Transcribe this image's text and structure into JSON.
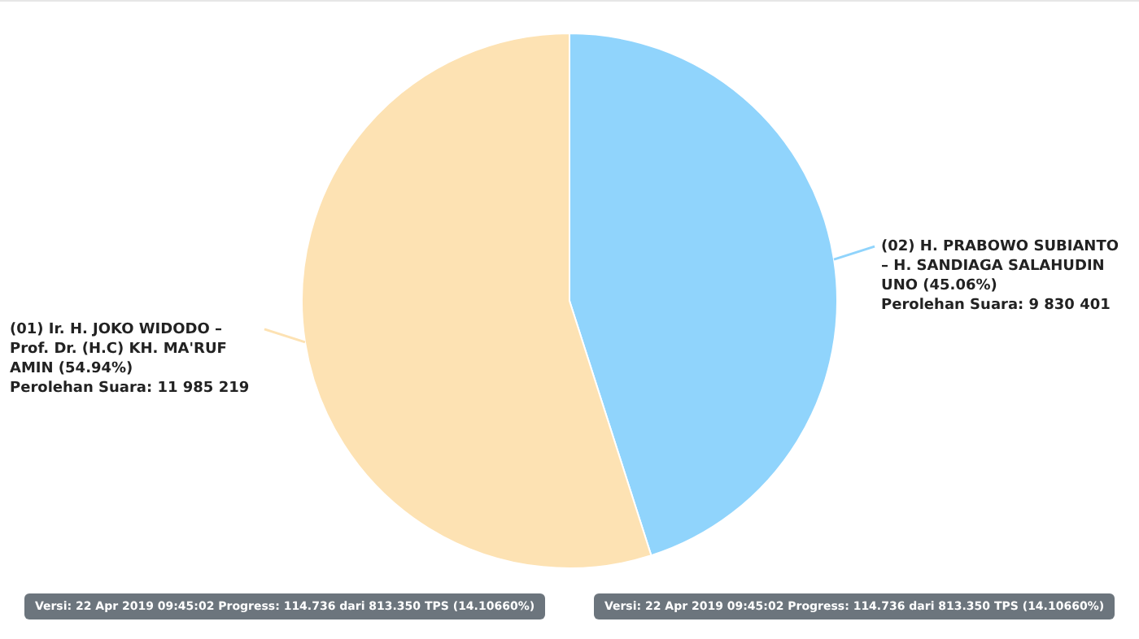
{
  "chart_data": {
    "type": "pie",
    "categories": [
      "(02) H. PRABOWO SUBIANTO – H. SANDIAGA SALAHUDIN UNO (45.06%)",
      "(01) Ir. H. JOKO WIDODO – Prof. Dr. (H.C) KH. MA'RUF AMIN (54.94%)"
    ],
    "values": [
      9830401,
      11985219
    ],
    "colors": [
      "#90d4fc",
      "#fde2b3"
    ],
    "value_labels": [
      "Perolehan Suara: 9 830 401",
      "Perolehan Suara: 11 985 219"
    ],
    "legend": false,
    "annotations": [
      "Versi: 22 Apr 2019 09:45:02 Progress: 114.736 dari 813.350 TPS (14.10660%)",
      "Versi: 22 Apr 2019 09:45:02 Progress: 114.736 dari 813.350 TPS (14.10660%)"
    ]
  }
}
